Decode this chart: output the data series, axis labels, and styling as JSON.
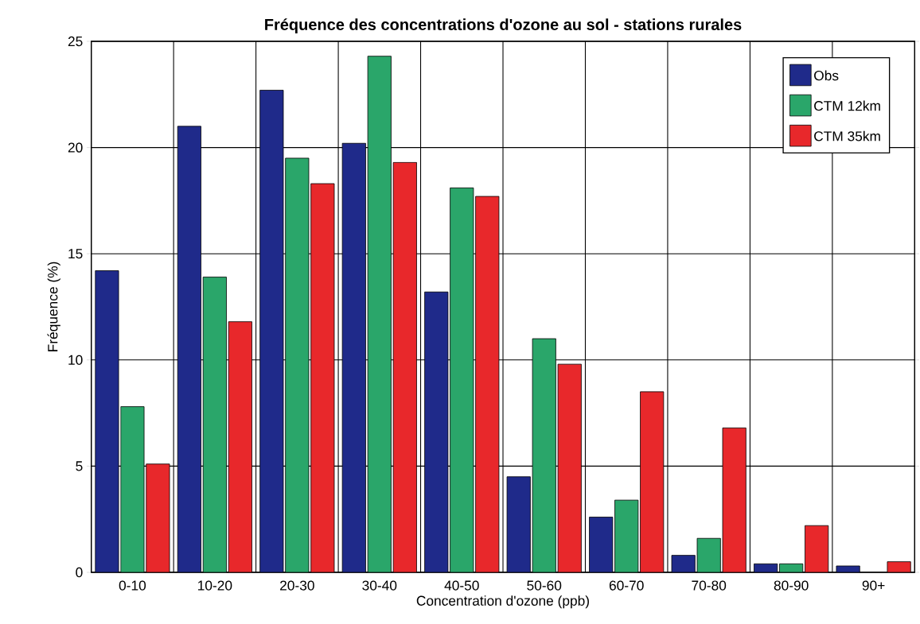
{
  "chart_data": {
    "type": "bar",
    "title": "Fréquence des concentrations d'ozone au sol - stations rurales",
    "xlabel": "Concentration d'ozone (ppb)",
    "ylabel": "Fréquence (%)",
    "categories": [
      "0-10",
      "10-20",
      "20-30",
      "30-40",
      "40-50",
      "50-60",
      "60-70",
      "70-80",
      "80-90",
      "90+"
    ],
    "series": [
      {
        "name": "Obs",
        "color": "#1f2a8a",
        "values": [
          14.2,
          21.0,
          22.7,
          20.2,
          13.2,
          4.5,
          2.6,
          0.8,
          0.4,
          0.3
        ]
      },
      {
        "name": "CTM 12km",
        "color": "#2aa66a",
        "values": [
          7.8,
          13.9,
          19.5,
          24.3,
          18.1,
          11.0,
          3.4,
          1.6,
          0.4,
          null
        ]
      },
      {
        "name": "CTM 35km",
        "color": "#e8282b",
        "values": [
          5.1,
          11.8,
          18.3,
          19.3,
          17.7,
          9.8,
          8.5,
          6.8,
          2.2,
          0.5
        ]
      }
    ],
    "ylim": [
      0,
      25
    ],
    "yticks": [
      0,
      5,
      10,
      15,
      20,
      25
    ],
    "grid": true,
    "legend": "top right"
  }
}
